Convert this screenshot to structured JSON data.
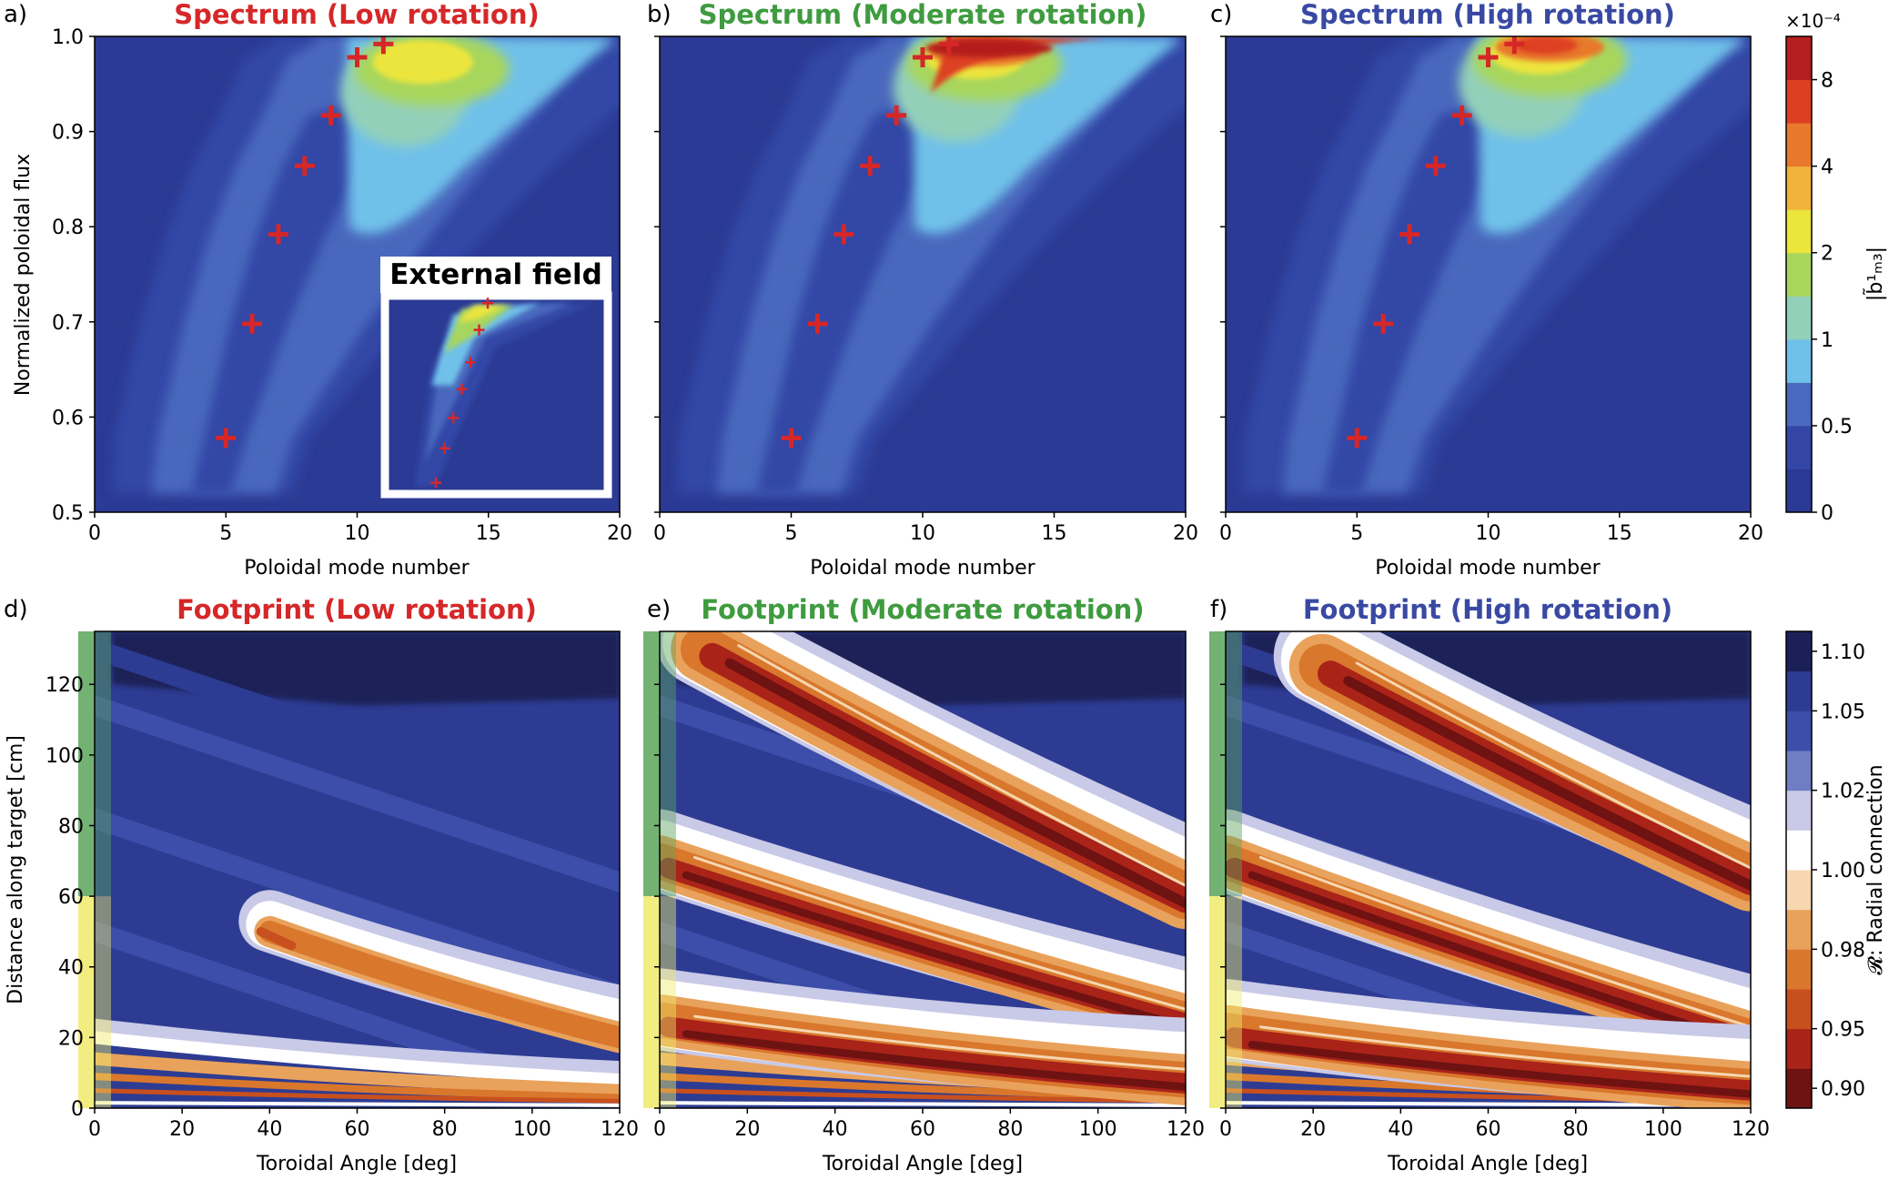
{
  "colors": {
    "low": "#d62728",
    "moderate": "#3f9b3f",
    "high": "#3949a3",
    "marker": "#d62728",
    "spectrum_levels": [
      "#2b3a94",
      "#3346a6",
      "#4a68bd",
      "#6fc1ea",
      "#93d0b9",
      "#a8d65c",
      "#ece53c",
      "#f1b33b",
      "#e8782c",
      "#dd3f24",
      "#b41e1e"
    ],
    "footprint_levels": [
      "#6e1212",
      "#a92319",
      "#c8501e",
      "#d9772d",
      "#e9a25b",
      "#f6d7b0",
      "#ffffff",
      "#c9c9e8",
      "#6f7ec4",
      "#3c4ea9",
      "#2d3c92",
      "#1b2158"
    ],
    "shade_green": "#5aa55a",
    "shade_yellow": "#f0ea6a"
  },
  "colorbar_spectrum": {
    "label": "|b̃¹ₘ₃|",
    "exponent": "×10⁻⁴",
    "ticks": [
      "0",
      "0.5",
      "1",
      "2",
      "4",
      "8"
    ]
  },
  "colorbar_footprint": {
    "label": "𝓡: Radial connection",
    "ticks": [
      "0.90",
      "0.95",
      "0.98",
      "1.00",
      "1.02",
      "1.05",
      "1.10"
    ]
  },
  "panels": [
    {
      "letter": "a)",
      "title": "Spectrum (Low rotation)",
      "xlabel": "Poloidal mode number",
      "ylabel": "Normalized poloidal flux"
    },
    {
      "letter": "b)",
      "title": "Spectrum (Moderate rotation)",
      "xlabel": "Poloidal mode number",
      "ylabel": ""
    },
    {
      "letter": "c)",
      "title": "Spectrum (High rotation)",
      "xlabel": "Poloidal mode number",
      "ylabel": ""
    },
    {
      "letter": "d)",
      "title": "Footprint (Low rotation)",
      "xlabel": "Toroidal Angle [deg]",
      "ylabel": "Distance along target [cm]"
    },
    {
      "letter": "e)",
      "title": "Footprint (Moderate rotation)",
      "xlabel": "Toroidal Angle [deg]",
      "ylabel": ""
    },
    {
      "letter": "f)",
      "title": "Footprint (High rotation)",
      "xlabel": "Toroidal Angle [deg]",
      "ylabel": ""
    }
  ],
  "inset": {
    "label": "External field"
  },
  "chart_data": [
    {
      "type": "heatmap",
      "title": "Spectrum (Low rotation)",
      "xlabel": "Poloidal mode number",
      "ylabel": "Normalized poloidal flux",
      "xlim": [
        0,
        20
      ],
      "ylim": [
        0.5,
        1.0
      ],
      "xticks": [
        "0",
        "5",
        "10",
        "15",
        "20"
      ],
      "yticks": [
        "0.5",
        "0.6",
        "0.7",
        "0.8",
        "0.9",
        "1.0"
      ],
      "markers": [
        {
          "x": 5,
          "y": 0.578
        },
        {
          "x": 6,
          "y": 0.698
        },
        {
          "x": 7,
          "y": 0.792
        },
        {
          "x": 8,
          "y": 0.864
        },
        {
          "x": 9,
          "y": 0.917
        },
        {
          "x": 10,
          "y": 0.978
        },
        {
          "x": 11,
          "y": 0.992
        }
      ],
      "hotspot": {
        "x": 12.5,
        "y": 0.975,
        "peak": 3
      }
    },
    {
      "type": "heatmap",
      "title": "Spectrum (Moderate rotation)",
      "xlabel": "Poloidal mode number",
      "ylabel": "",
      "xlim": [
        0,
        20
      ],
      "ylim": [
        0.5,
        1.0
      ],
      "xticks": [
        "0",
        "5",
        "10",
        "15",
        "20"
      ],
      "yticks": [
        "0.5",
        "0.6",
        "0.7",
        "0.8",
        "0.9",
        "1.0"
      ],
      "markers": [
        {
          "x": 5,
          "y": 0.578
        },
        {
          "x": 6,
          "y": 0.698
        },
        {
          "x": 7,
          "y": 0.792
        },
        {
          "x": 8,
          "y": 0.864
        },
        {
          "x": 9,
          "y": 0.917
        },
        {
          "x": 10,
          "y": 0.978
        },
        {
          "x": 11,
          "y": 0.992
        }
      ],
      "hotspot": {
        "x": 12,
        "y": 0.98,
        "peak": 8
      }
    },
    {
      "type": "heatmap",
      "title": "Spectrum (High rotation)",
      "xlabel": "Poloidal mode number",
      "ylabel": "",
      "xlim": [
        0,
        20
      ],
      "ylim": [
        0.5,
        1.0
      ],
      "xticks": [
        "0",
        "5",
        "10",
        "15",
        "20"
      ],
      "yticks": [
        "0.5",
        "0.6",
        "0.7",
        "0.8",
        "0.9",
        "1.0"
      ],
      "markers": [
        {
          "x": 5,
          "y": 0.578
        },
        {
          "x": 6,
          "y": 0.698
        },
        {
          "x": 7,
          "y": 0.792
        },
        {
          "x": 8,
          "y": 0.864
        },
        {
          "x": 9,
          "y": 0.917
        },
        {
          "x": 10,
          "y": 0.978
        },
        {
          "x": 11,
          "y": 0.992
        }
      ],
      "hotspot": {
        "x": 12,
        "y": 0.985,
        "peak": 5
      }
    },
    {
      "type": "heatmap",
      "title": "Footprint (Low rotation)",
      "xlabel": "Toroidal Angle [deg]",
      "ylabel": "Distance along target [cm]",
      "xlim": [
        0,
        120
      ],
      "ylim": [
        0,
        135
      ],
      "xticks": [
        "0",
        "20",
        "40",
        "60",
        "80",
        "100",
        "120"
      ],
      "yticks": [
        "0",
        "20",
        "40",
        "60",
        "80",
        "100",
        "120"
      ],
      "target_regions": [
        {
          "from": 60,
          "to": 135,
          "color": "green"
        },
        {
          "from": 0,
          "to": 60,
          "color": "yellow"
        }
      ],
      "lobes": [
        {
          "x_start": 40,
          "y_start": 50,
          "x_end": 120,
          "y_end": 20
        }
      ]
    },
    {
      "type": "heatmap",
      "title": "Footprint (Moderate rotation)",
      "xlabel": "Toroidal Angle [deg]",
      "ylabel": "",
      "xlim": [
        0,
        120
      ],
      "ylim": [
        0,
        135
      ],
      "xticks": [
        "0",
        "20",
        "40",
        "60",
        "80",
        "100",
        "120"
      ],
      "yticks": [
        "0",
        "20",
        "40",
        "60",
        "80",
        "100",
        "120"
      ],
      "target_regions": [
        {
          "from": 60,
          "to": 135,
          "color": "green"
        },
        {
          "from": 0,
          "to": 60,
          "color": "yellow"
        }
      ],
      "lobes": [
        {
          "x_start": 10,
          "y_start": 130,
          "x_end": 120,
          "y_end": 60
        },
        {
          "x_start": 0,
          "y_start": 70,
          "x_end": 120,
          "y_end": 25
        },
        {
          "x_start": 0,
          "y_start": 25,
          "x_end": 120,
          "y_end": 8
        }
      ]
    },
    {
      "type": "heatmap",
      "title": "Footprint (High rotation)",
      "xlabel": "Toroidal Angle [deg]",
      "ylabel": "",
      "xlim": [
        0,
        120
      ],
      "ylim": [
        0,
        135
      ],
      "xticks": [
        "0",
        "20",
        "40",
        "60",
        "80",
        "100",
        "120"
      ],
      "yticks": [
        "0",
        "20",
        "40",
        "60",
        "80",
        "100",
        "120"
      ],
      "target_regions": [
        {
          "from": 60,
          "to": 135,
          "color": "green"
        },
        {
          "from": 0,
          "to": 60,
          "color": "yellow"
        }
      ],
      "lobes": [
        {
          "x_start": 22,
          "y_start": 125,
          "x_end": 120,
          "y_end": 65
        },
        {
          "x_start": 0,
          "y_start": 70,
          "x_end": 120,
          "y_end": 20
        },
        {
          "x_start": 0,
          "y_start": 22,
          "x_end": 120,
          "y_end": 6
        }
      ]
    }
  ]
}
